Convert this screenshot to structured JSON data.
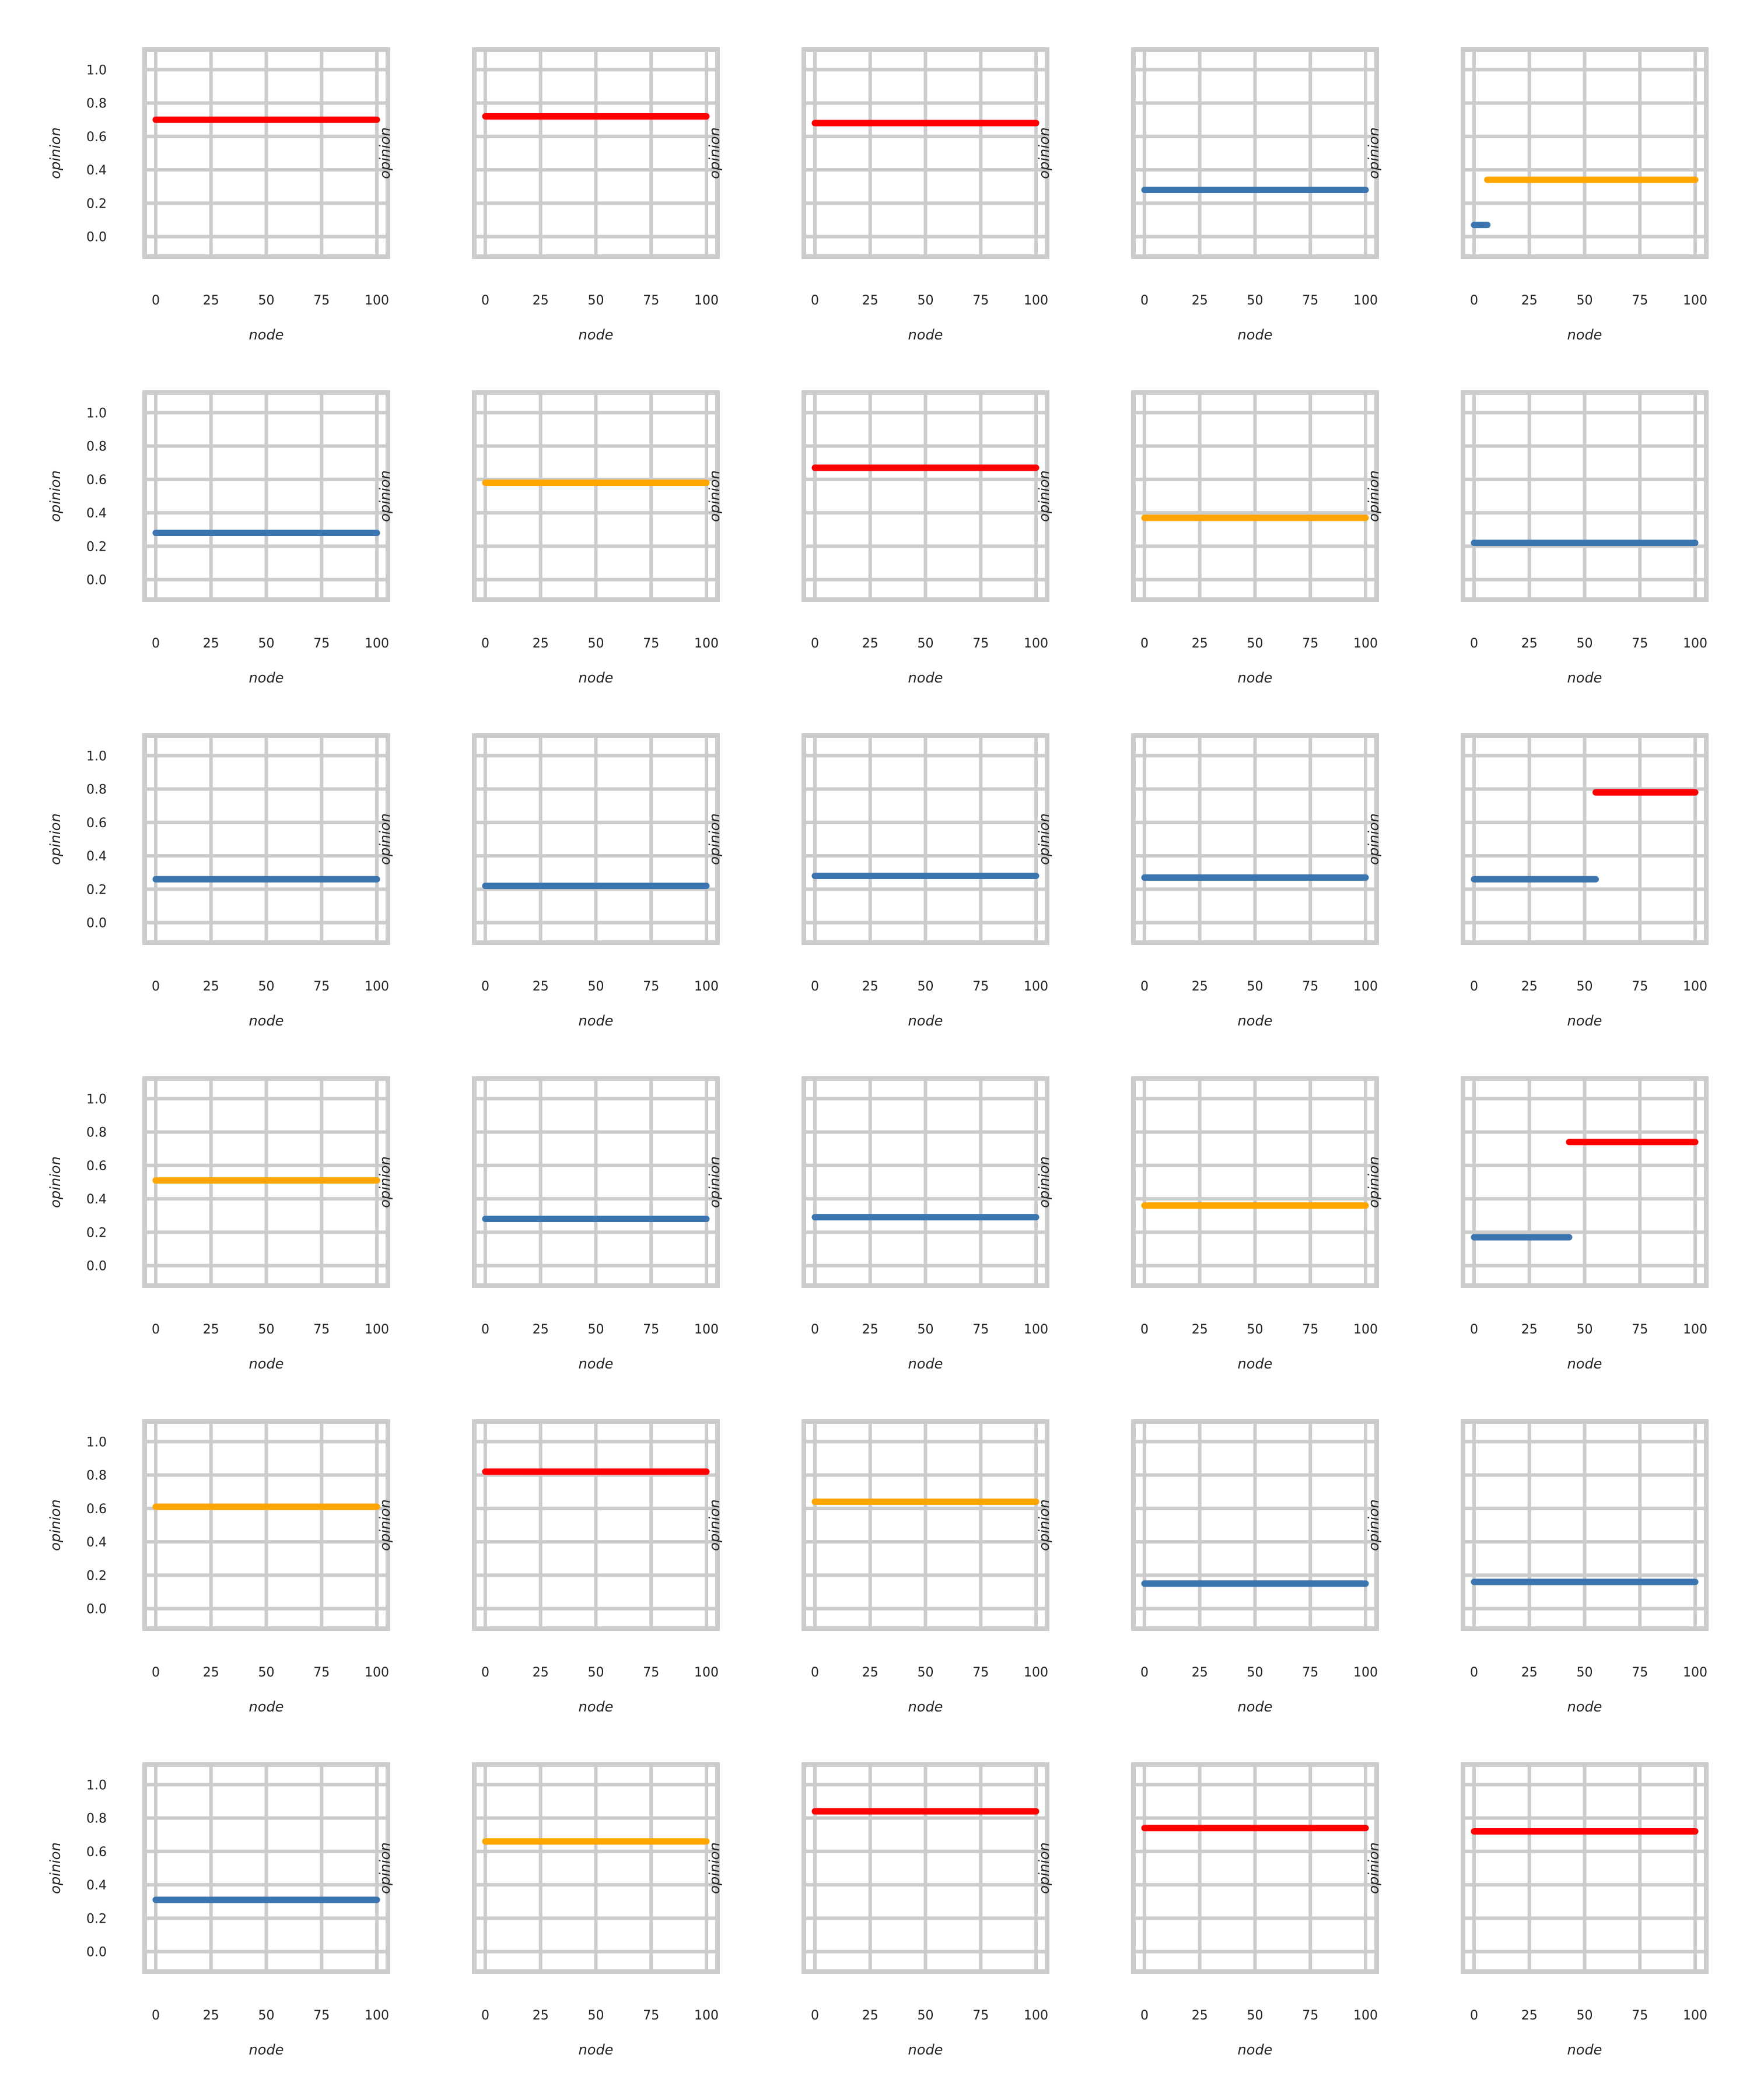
{
  "colors": {
    "red": "#ff0000",
    "orange": "#ffa500",
    "blue": "#3b75af",
    "grid": "#cccccc",
    "background": "#ffffff"
  },
  "chart_data": {
    "type": "line",
    "layout": "grid 6 rows x 5 columns, shared y axis per row (tick labels on first column only)",
    "xlabel": "node",
    "ylabel": "opinion",
    "xlim": [
      -5,
      105
    ],
    "ylim": [
      -0.12,
      1.12
    ],
    "xticks": [
      "0",
      "25",
      "50",
      "75",
      "100"
    ],
    "yticks": [
      "0.0",
      "0.2",
      "0.4",
      "0.6",
      "0.8",
      "1.0"
    ],
    "grid": true,
    "panels": [
      {
        "segments": [
          {
            "x": [
              0,
              100
            ],
            "y": 0.7,
            "color": "red"
          }
        ]
      },
      {
        "segments": [
          {
            "x": [
              0,
              100
            ],
            "y": 0.72,
            "color": "red"
          }
        ]
      },
      {
        "segments": [
          {
            "x": [
              0,
              100
            ],
            "y": 0.68,
            "color": "red"
          }
        ]
      },
      {
        "segments": [
          {
            "x": [
              0,
              100
            ],
            "y": 0.28,
            "color": "blue"
          }
        ]
      },
      {
        "segments": [
          {
            "x": [
              0,
              6
            ],
            "y": 0.07,
            "color": "blue"
          },
          {
            "x": [
              6,
              100
            ],
            "y": 0.34,
            "color": "orange"
          }
        ]
      },
      {
        "segments": [
          {
            "x": [
              0,
              100
            ],
            "y": 0.28,
            "color": "blue"
          }
        ]
      },
      {
        "segments": [
          {
            "x": [
              0,
              100
            ],
            "y": 0.58,
            "color": "orange"
          }
        ]
      },
      {
        "segments": [
          {
            "x": [
              0,
              100
            ],
            "y": 0.67,
            "color": "red"
          }
        ]
      },
      {
        "segments": [
          {
            "x": [
              0,
              100
            ],
            "y": 0.37,
            "color": "orange"
          }
        ]
      },
      {
        "segments": [
          {
            "x": [
              0,
              100
            ],
            "y": 0.22,
            "color": "blue"
          }
        ]
      },
      {
        "segments": [
          {
            "x": [
              0,
              100
            ],
            "y": 0.26,
            "color": "blue"
          }
        ]
      },
      {
        "segments": [
          {
            "x": [
              0,
              100
            ],
            "y": 0.22,
            "color": "blue"
          }
        ]
      },
      {
        "segments": [
          {
            "x": [
              0,
              100
            ],
            "y": 0.28,
            "color": "blue"
          }
        ]
      },
      {
        "segments": [
          {
            "x": [
              0,
              100
            ],
            "y": 0.27,
            "color": "blue"
          }
        ]
      },
      {
        "segments": [
          {
            "x": [
              0,
              55
            ],
            "y": 0.26,
            "color": "blue"
          },
          {
            "x": [
              55,
              100
            ],
            "y": 0.78,
            "color": "red"
          }
        ]
      },
      {
        "segments": [
          {
            "x": [
              0,
              100
            ],
            "y": 0.51,
            "color": "orange"
          }
        ]
      },
      {
        "segments": [
          {
            "x": [
              0,
              100
            ],
            "y": 0.28,
            "color": "blue"
          }
        ]
      },
      {
        "segments": [
          {
            "x": [
              0,
              100
            ],
            "y": 0.29,
            "color": "blue"
          }
        ]
      },
      {
        "segments": [
          {
            "x": [
              0,
              100
            ],
            "y": 0.36,
            "color": "orange"
          }
        ]
      },
      {
        "segments": [
          {
            "x": [
              0,
              43
            ],
            "y": 0.17,
            "color": "blue"
          },
          {
            "x": [
              43,
              100
            ],
            "y": 0.74,
            "color": "red"
          }
        ]
      },
      {
        "segments": [
          {
            "x": [
              0,
              100
            ],
            "y": 0.61,
            "color": "orange"
          }
        ]
      },
      {
        "segments": [
          {
            "x": [
              0,
              100
            ],
            "y": 0.82,
            "color": "red"
          }
        ]
      },
      {
        "segments": [
          {
            "x": [
              0,
              100
            ],
            "y": 0.64,
            "color": "orange"
          }
        ]
      },
      {
        "segments": [
          {
            "x": [
              0,
              100
            ],
            "y": 0.15,
            "color": "blue"
          }
        ]
      },
      {
        "segments": [
          {
            "x": [
              0,
              100
            ],
            "y": 0.16,
            "color": "blue"
          }
        ]
      },
      {
        "segments": [
          {
            "x": [
              0,
              100
            ],
            "y": 0.31,
            "color": "blue"
          }
        ]
      },
      {
        "segments": [
          {
            "x": [
              0,
              100
            ],
            "y": 0.66,
            "color": "orange"
          }
        ]
      },
      {
        "segments": [
          {
            "x": [
              0,
              100
            ],
            "y": 0.84,
            "color": "red"
          }
        ]
      },
      {
        "segments": [
          {
            "x": [
              0,
              100
            ],
            "y": 0.74,
            "color": "red"
          }
        ]
      },
      {
        "segments": [
          {
            "x": [
              0,
              100
            ],
            "y": 0.72,
            "color": "red"
          }
        ]
      }
    ]
  }
}
